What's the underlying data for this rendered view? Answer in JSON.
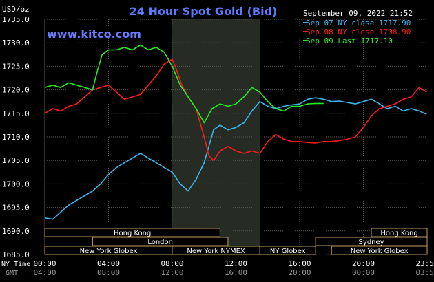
{
  "header": {
    "title": "24 Hour Spot Gold (Bid)",
    "unit": "USD/oz",
    "website": "www.kitco.com",
    "timestamp": "September 09, 2022 21:52"
  },
  "legend": [
    {
      "label": "Sep 07 NY close 1717.90",
      "color": "#3bb7f0"
    },
    {
      "label": "Sep 08 NY close 1708.90",
      "color": "#ff1a1a"
    },
    {
      "label": "Sep 09 Last 1717.10",
      "color": "#22ee22"
    }
  ],
  "axis_labels": {
    "ny_time": "NY Time",
    "gmt": "GMT"
  },
  "sessions": [
    {
      "label": "Hong Kong",
      "start": 0.0,
      "end": 11.0,
      "row": 0
    },
    {
      "label": "Hong Kong",
      "start": 20.5,
      "end": 24.0,
      "row": 0
    },
    {
      "label": "London",
      "start": 3.0,
      "end": 11.5,
      "row": 1
    },
    {
      "label": "Sydney",
      "start": 17.0,
      "end": 24.0,
      "row": 1
    },
    {
      "label": "New York Globex",
      "start": 0.0,
      "end": 8.0,
      "row": 2
    },
    {
      "label": "New York NYMEX",
      "start": 8.0,
      "end": 13.5,
      "row": 2
    },
    {
      "label": "NY Globex",
      "start": 13.5,
      "end": 17.0,
      "row": 2
    },
    {
      "label": "New York Globex",
      "start": 18.0,
      "end": 24.0,
      "row": 2
    }
  ],
  "colors": {
    "title": "#5a7bff",
    "website": "#6a7cff",
    "axis_text": "#ffffff",
    "gmt_text": "#9a9a9a",
    "grid": "#5a5a5a",
    "shade": "#262b24",
    "session_border": "#c8a060"
  },
  "chart_data": {
    "type": "line",
    "title": "24 Hour Spot Gold (Bid)",
    "ylabel": "USD/oz",
    "xlabel": "NY Time",
    "ylim": [
      1685.0,
      1735.0
    ],
    "xlim": [
      0,
      24
    ],
    "yticks": [
      "1685.0",
      "1690.0",
      "1695.0",
      "1700.0",
      "1705.0",
      "1710.0",
      "1715.0",
      "1720.0",
      "1725.0",
      "1730.0",
      "1735.0"
    ],
    "xticks_ny": [
      "00:00",
      "04:00",
      "08:00",
      "12:00",
      "16:00",
      "20:00",
      "23:59"
    ],
    "xticks_gmt": [
      "04:00",
      "08:00",
      "12:00",
      "16:00",
      "20:00",
      "00:00",
      "03:59"
    ],
    "shaded_range": [
      8.0,
      13.5
    ],
    "series": [
      {
        "name": "Sep 07",
        "color": "#3bb7f0",
        "x": [
          0,
          0.5,
          1.0,
          1.5,
          2.0,
          2.5,
          3.0,
          3.5,
          4.0,
          4.5,
          5.0,
          5.5,
          6.0,
          6.5,
          7.0,
          7.5,
          8.0,
          8.5,
          9.0,
          9.5,
          10.0,
          10.3,
          10.6,
          11.0,
          11.5,
          12.0,
          12.5,
          13.0,
          13.5,
          14.0,
          14.5,
          15.0,
          15.5,
          16.0,
          16.5,
          17.0,
          17.5,
          18.0,
          18.5,
          19.0,
          19.5,
          20.0,
          20.5,
          21.0,
          21.5,
          22.0,
          22.5,
          23.0,
          23.5,
          23.97
        ],
        "y": [
          1692.8,
          1692.5,
          1694.0,
          1695.5,
          1696.5,
          1697.5,
          1698.5,
          1700.0,
          1702.0,
          1703.5,
          1704.5,
          1705.5,
          1706.5,
          1705.5,
          1704.5,
          1703.5,
          1702.5,
          1700.0,
          1698.5,
          1701.0,
          1704.5,
          1708.0,
          1711.5,
          1712.5,
          1711.5,
          1712.0,
          1713.0,
          1715.5,
          1717.5,
          1716.5,
          1716.0,
          1716.5,
          1716.8,
          1717.0,
          1718.0,
          1718.3,
          1718.0,
          1717.5,
          1717.6,
          1717.3,
          1717.0,
          1717.5,
          1718.0,
          1717.0,
          1716.0,
          1716.5,
          1715.5,
          1716.0,
          1715.5,
          1714.8
        ]
      },
      {
        "name": "Sep 08",
        "color": "#ff1a1a",
        "x": [
          0,
          0.5,
          1.0,
          1.5,
          2.0,
          2.5,
          3.0,
          3.5,
          4.0,
          4.5,
          5.0,
          5.5,
          6.0,
          6.5,
          7.0,
          7.5,
          8.0,
          8.3,
          8.6,
          9.0,
          9.5,
          10.0,
          10.3,
          10.6,
          11.0,
          11.5,
          12.0,
          12.5,
          13.0,
          13.5,
          14.0,
          14.5,
          15.0,
          15.5,
          16.0,
          16.5,
          17.0,
          17.5,
          18.0,
          18.5,
          19.0,
          19.5,
          20.0,
          20.5,
          21.0,
          21.5,
          22.0,
          22.5,
          23.0,
          23.5,
          23.97
        ],
        "y": [
          1715.0,
          1716.0,
          1715.5,
          1716.5,
          1717.0,
          1718.5,
          1720.0,
          1720.5,
          1721.0,
          1719.5,
          1718.0,
          1718.5,
          1719.0,
          1721.0,
          1723.0,
          1725.5,
          1726.5,
          1724.0,
          1721.0,
          1718.5,
          1716.0,
          1710.0,
          1706.0,
          1705.0,
          1707.0,
          1708.0,
          1707.0,
          1706.5,
          1707.0,
          1706.5,
          1709.0,
          1710.5,
          1709.5,
          1709.0,
          1709.0,
          1708.8,
          1708.7,
          1709.0,
          1709.0,
          1709.2,
          1709.5,
          1710.0,
          1712.0,
          1714.5,
          1716.0,
          1716.5,
          1717.0,
          1718.0,
          1718.5,
          1720.5,
          1719.5
        ]
      },
      {
        "name": "Sep 09",
        "color": "#22ee22",
        "x": [
          0,
          0.5,
          1.0,
          1.5,
          2.0,
          2.5,
          3.0,
          3.3,
          3.6,
          4.0,
          4.5,
          5.0,
          5.5,
          6.0,
          6.5,
          7.0,
          7.5,
          8.0,
          8.5,
          9.0,
          9.5,
          10.0,
          10.5,
          11.0,
          11.5,
          12.0,
          12.5,
          13.0,
          13.5,
          14.0,
          14.5,
          15.0,
          15.5,
          16.0,
          16.5,
          17.0,
          17.5
        ],
        "y": [
          1720.5,
          1721.0,
          1720.5,
          1721.5,
          1721.0,
          1720.5,
          1720.0,
          1724.0,
          1727.5,
          1728.5,
          1728.5,
          1729.0,
          1728.5,
          1729.5,
          1728.5,
          1729.0,
          1728.0,
          1725.0,
          1721.0,
          1718.5,
          1716.0,
          1713.0,
          1716.0,
          1717.0,
          1716.5,
          1717.0,
          1718.5,
          1720.5,
          1719.5,
          1717.5,
          1716.0,
          1715.5,
          1716.5,
          1716.5,
          1717.0,
          1717.1,
          1717.1
        ]
      }
    ]
  }
}
